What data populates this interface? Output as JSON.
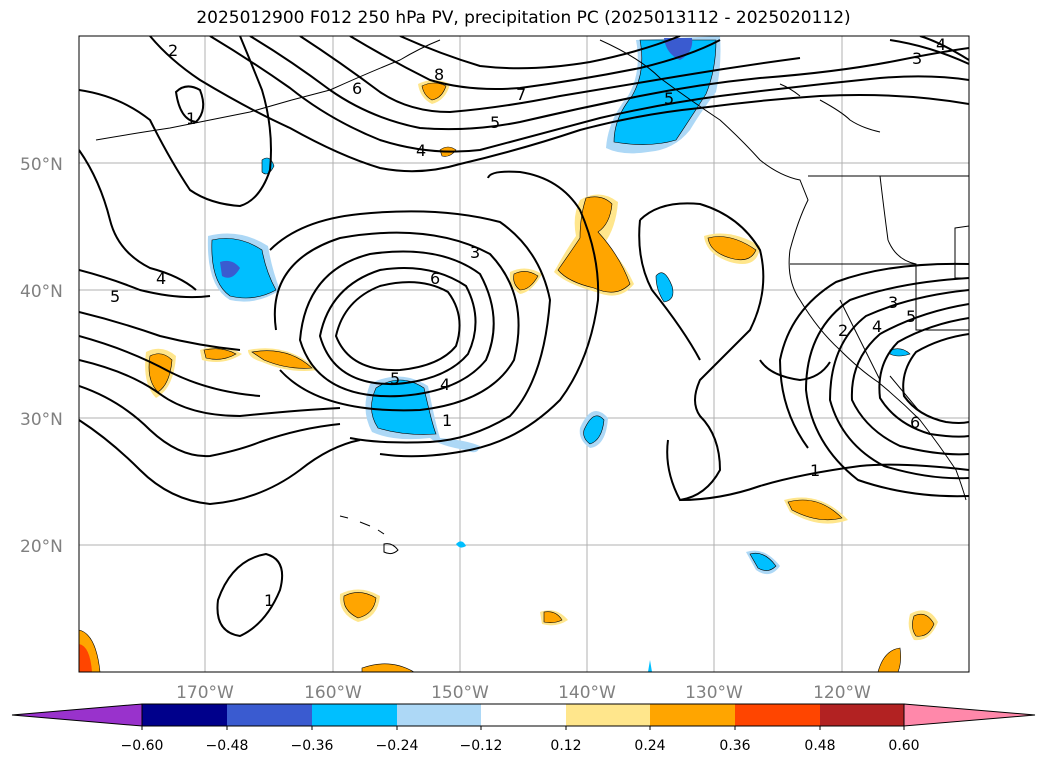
{
  "title": "2025012900 F012 250 hPa PV, precipitation PC (2025013112 - 2025020112)",
  "lat_labels": [
    "50°N",
    "40°N",
    "30°N",
    "20°N"
  ],
  "lon_labels": [
    "170°W",
    "160°W",
    "150°W",
    "140°W",
    "130°W",
    "120°W"
  ],
  "colorbar": {
    "tick_labels": [
      "−0.60",
      "−0.48",
      "−0.36",
      "−0.24",
      "−0.12",
      "0.12",
      "0.24",
      "0.36",
      "0.48",
      "0.60"
    ],
    "colors": [
      "#9932cc",
      "#00008b",
      "#3a5bd0",
      "#00bfff",
      "#add8f6",
      "#ffffff",
      "#ffe68c",
      "#ffa500",
      "#ff4500",
      "#b22222",
      "#ff88aa"
    ]
  },
  "contour_labels": [
    "2",
    "1",
    "6",
    "8",
    "7",
    "5",
    "4",
    "3",
    "4",
    "5",
    "3",
    "6",
    "4",
    "5",
    "1",
    "3",
    "4",
    "5",
    "2",
    "6",
    "1",
    "1",
    "5",
    "4",
    "3",
    "4"
  ],
  "colors": {
    "positive_light": "#ffe68c",
    "positive_mid": "#ffa500",
    "positive_strong": "#ff4500",
    "negative_light": "#add8f6",
    "negative_mid": "#00bfff",
    "negative_strong": "#3a5bd0"
  }
}
